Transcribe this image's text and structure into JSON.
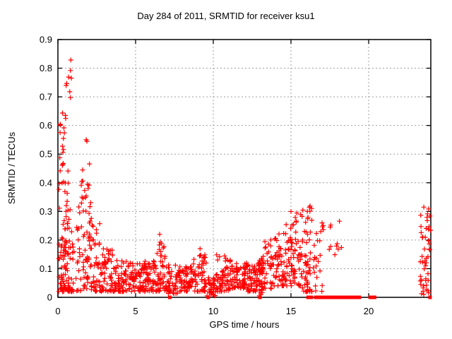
{
  "colors": {
    "marker": "#ff0000",
    "grid": "#9e9e9e",
    "axis": "#000000",
    "background": "#ffffff",
    "text": "#000000"
  },
  "chart_data": {
    "type": "scatter",
    "title": "Day 284 of 2011, SRMTID for receiver ksu1",
    "xlabel": "GPS time / hours",
    "ylabel": "SRMTID / TECUs",
    "xlim": [
      0,
      24
    ],
    "ylim": [
      0,
      0.9
    ],
    "xticks": [
      0,
      5,
      10,
      15,
      20
    ],
    "yticks": [
      0,
      0.1,
      0.2,
      0.3,
      0.4,
      0.5,
      0.6,
      0.7,
      0.8,
      0.9
    ],
    "grid": true,
    "legend": null,
    "marker": {
      "glyph": "plus",
      "color": "#ff0000",
      "size": 7
    },
    "zero_marker": {
      "glyph": "filled-square",
      "color": "#ff0000",
      "size": 5
    },
    "description": "Dense scatter of SRMTID values vs GPS time. Large spike up to 0.83 TECUs just after 0 h, secondary spike to ~0.55 near 1.8 h, low band 0.02-0.15 from 3-13 h with small bumps at 6.5 and 9.2 h and a dip near 9.8 h, rising activity 13-16.4 h peaking ~0.32, sparse points 16.4-18.2 h, flat-zero runs 16.1-19.45 h and 20.1-20.4 h, final cluster 0-0.31 at 23.3-24 h.",
    "seed": 284,
    "clusters": [
      {
        "x0": 0.05,
        "x1": 0.75,
        "n": 70,
        "ymin": 0.02,
        "ymax": 0.45,
        "shape": 1.8
      },
      {
        "x0": 0.08,
        "x1": 0.55,
        "n": 16,
        "ymin": 0.45,
        "ymax": 0.66,
        "shape": 1.0
      },
      {
        "x0": 0.5,
        "x1": 0.9,
        "n": 8,
        "ymin": 0.65,
        "ymax": 0.84,
        "shape": 1.0
      },
      {
        "x0": 0.3,
        "x1": 1.5,
        "n": 70,
        "ymin": 0.02,
        "ymax": 0.33,
        "shape": 2.2
      },
      {
        "x0": 1.5,
        "x1": 2.15,
        "n": 55,
        "ymin": 0.03,
        "ymax": 0.47,
        "shape": 2.0
      },
      {
        "x0": 2.1,
        "x1": 2.8,
        "n": 45,
        "ymin": 0.02,
        "ymax": 0.28,
        "shape": 2.0
      },
      {
        "x0": 2.8,
        "x1": 3.6,
        "n": 55,
        "ymin": 0.02,
        "ymax": 0.17,
        "shape": 1.7
      },
      {
        "x0": 3.6,
        "x1": 4.6,
        "n": 65,
        "ymin": 0.02,
        "ymax": 0.13,
        "shape": 1.4
      },
      {
        "x0": 4.6,
        "x1": 5.6,
        "n": 65,
        "ymin": 0.02,
        "ymax": 0.12,
        "shape": 1.4
      },
      {
        "x0": 5.6,
        "x1": 6.3,
        "n": 50,
        "ymin": 0.02,
        "ymax": 0.13,
        "shape": 1.4
      },
      {
        "x0": 6.3,
        "x1": 6.9,
        "n": 45,
        "ymin": 0.02,
        "ymax": 0.2,
        "shape": 1.7
      },
      {
        "x0": 6.9,
        "x1": 7.7,
        "n": 50,
        "ymin": 0.01,
        "ymax": 0.12,
        "shape": 1.4
      },
      {
        "x0": 7.7,
        "x1": 8.7,
        "n": 60,
        "ymin": 0.02,
        "ymax": 0.11,
        "shape": 1.3
      },
      {
        "x0": 8.7,
        "x1": 9.6,
        "n": 55,
        "ymin": 0.02,
        "ymax": 0.15,
        "shape": 1.5
      },
      {
        "x0": 9.6,
        "x1": 10.15,
        "n": 35,
        "ymin": 0.005,
        "ymax": 0.07,
        "shape": 1.3
      },
      {
        "x0": 10.15,
        "x1": 11.1,
        "n": 60,
        "ymin": 0.02,
        "ymax": 0.15,
        "shape": 1.6
      },
      {
        "x0": 11.1,
        "x1": 12.1,
        "n": 65,
        "ymin": 0.03,
        "ymax": 0.12,
        "shape": 1.4
      },
      {
        "x0": 12.1,
        "x1": 12.8,
        "n": 50,
        "ymin": 0.02,
        "ymax": 0.12,
        "shape": 1.4
      },
      {
        "x0": 12.8,
        "x1": 13.2,
        "n": 45,
        "ymin": 0.005,
        "ymax": 0.14,
        "shape": 1.2
      },
      {
        "x0": 13.2,
        "x1": 14.1,
        "n": 50,
        "ymin": 0.03,
        "ymax": 0.21,
        "shape": 1.7
      },
      {
        "x0": 14.1,
        "x1": 14.9,
        "n": 55,
        "ymin": 0.04,
        "ymax": 0.26,
        "shape": 1.8
      },
      {
        "x0": 14.9,
        "x1": 15.7,
        "n": 60,
        "ymin": 0.04,
        "ymax": 0.3,
        "shape": 1.8
      },
      {
        "x0": 15.7,
        "x1": 16.35,
        "n": 55,
        "ymin": 0.02,
        "ymax": 0.32,
        "shape": 1.6
      },
      {
        "x0": 16.35,
        "x1": 17.1,
        "n": 22,
        "ymin": 0.02,
        "ymax": 0.27,
        "shape": 1.5
      },
      {
        "x0": 17.45,
        "x1": 18.25,
        "n": 10,
        "ymin": 0.07,
        "ymax": 0.28,
        "shape": 1.0
      },
      {
        "x0": 23.3,
        "x1": 24.0,
        "n": 48,
        "ymin": 0.01,
        "ymax": 0.31,
        "shape": 1.4
      }
    ],
    "extra_points": [
      [
        1.82,
        0.55
      ],
      [
        1.87,
        0.545
      ],
      [
        1.55,
        0.35
      ],
      [
        1.62,
        0.345
      ],
      [
        0.52,
        0.3
      ],
      [
        6.55,
        0.22
      ],
      [
        9.15,
        0.17
      ],
      [
        16.05,
        0.3
      ],
      [
        17.0,
        0.26
      ],
      [
        23.55,
        0.315
      ]
    ],
    "zero_runs": [
      [
        16.1,
        16.35
      ],
      [
        16.6,
        17.1
      ],
      [
        17.25,
        17.55
      ],
      [
        17.65,
        19.45
      ],
      [
        20.1,
        20.4
      ]
    ],
    "zero_singles": [
      7.2,
      9.67,
      13.0,
      23.95
    ]
  }
}
